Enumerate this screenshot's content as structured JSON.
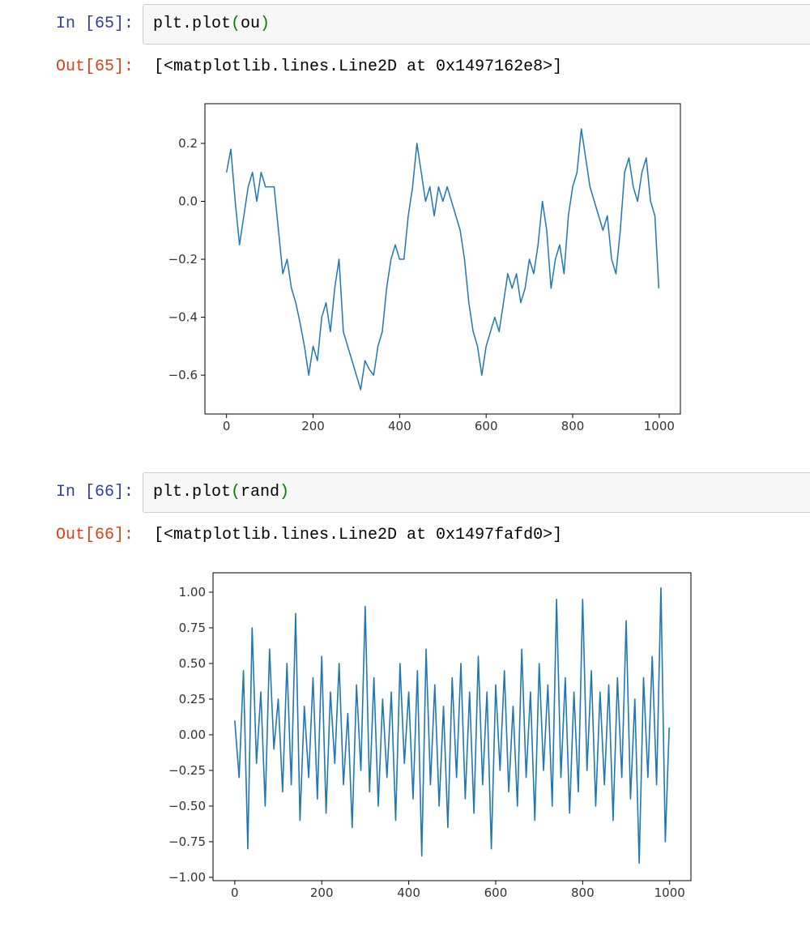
{
  "cells": [
    {
      "prompt_in": "In [65]:",
      "code": [
        "plt.plot",
        "(",
        "ou",
        ")"
      ],
      "prompt_out": "Out[65]:",
      "output": "[<matplotlib.lines.Line2D at 0x1497162e8>]"
    },
    {
      "prompt_in": "In [66]:",
      "code": [
        "plt.plot",
        "(",
        "rand",
        ")"
      ],
      "prompt_out": "Out[66]:",
      "output": "[<matplotlib.lines.Line2D at 0x1497fafd0>]"
    }
  ],
  "chart_data": [
    {
      "type": "line",
      "x": [
        0,
        10,
        20,
        30,
        40,
        50,
        60,
        70,
        80,
        90,
        100,
        110,
        120,
        130,
        140,
        150,
        160,
        170,
        180,
        190,
        200,
        210,
        220,
        230,
        240,
        250,
        260,
        270,
        280,
        290,
        300,
        310,
        320,
        330,
        340,
        350,
        360,
        370,
        380,
        390,
        400,
        410,
        420,
        430,
        440,
        450,
        460,
        470,
        480,
        490,
        500,
        510,
        520,
        530,
        540,
        550,
        560,
        570,
        580,
        590,
        600,
        610,
        620,
        630,
        640,
        650,
        660,
        670,
        680,
        690,
        700,
        710,
        720,
        730,
        740,
        750,
        760,
        770,
        780,
        790,
        800,
        810,
        820,
        830,
        840,
        850,
        860,
        870,
        880,
        890,
        900,
        910,
        920,
        930,
        940,
        950,
        960,
        970,
        980,
        990,
        999
      ],
      "series": [
        {
          "color": "#1f77b4",
          "values": [
            0.1,
            0.18,
            0.0,
            -0.15,
            -0.05,
            0.05,
            0.1,
            0.0,
            0.1,
            0.05,
            0.05,
            0.05,
            -0.1,
            -0.25,
            -0.2,
            -0.3,
            -0.35,
            -0.42,
            -0.5,
            -0.6,
            -0.5,
            -0.55,
            -0.4,
            -0.35,
            -0.45,
            -0.3,
            -0.2,
            -0.45,
            -0.5,
            -0.55,
            -0.6,
            -0.65,
            -0.55,
            -0.58,
            -0.6,
            -0.5,
            -0.45,
            -0.3,
            -0.2,
            -0.15,
            -0.2,
            -0.2,
            -0.05,
            0.05,
            0.2,
            0.1,
            0.0,
            0.05,
            -0.05,
            0.05,
            0.0,
            0.05,
            0.0,
            -0.05,
            -0.1,
            -0.2,
            -0.35,
            -0.45,
            -0.5,
            -0.6,
            -0.5,
            -0.45,
            -0.4,
            -0.45,
            -0.35,
            -0.25,
            -0.3,
            -0.25,
            -0.35,
            -0.3,
            -0.2,
            -0.25,
            -0.15,
            0.0,
            -0.1,
            -0.3,
            -0.2,
            -0.15,
            -0.25,
            -0.05,
            0.05,
            0.1,
            0.25,
            0.15,
            0.05,
            0.0,
            -0.05,
            -0.1,
            -0.05,
            -0.2,
            -0.25,
            -0.1,
            0.1,
            0.15,
            0.05,
            0.0,
            0.1,
            0.15,
            0.0,
            -0.05,
            -0.3
          ]
        }
      ],
      "xlim": [
        -49.95,
        1048.95
      ],
      "ylim": [
        -0.734,
        0.337
      ],
      "xticks": [
        0,
        200,
        400,
        600,
        800,
        1000
      ],
      "yticks": [
        {
          "value": -0.6,
          "label": "−0.6"
        },
        {
          "value": -0.4,
          "label": "−0.4"
        },
        {
          "value": -0.2,
          "label": "−0.2"
        },
        {
          "value": 0,
          "label": "0.0"
        },
        0.2
      ]
    },
    {
      "type": "line",
      "x": [
        0,
        10,
        20,
        30,
        40,
        50,
        60,
        70,
        80,
        90,
        100,
        110,
        120,
        130,
        140,
        150,
        160,
        170,
        180,
        190,
        200,
        210,
        220,
        230,
        240,
        250,
        260,
        270,
        280,
        290,
        300,
        310,
        320,
        330,
        340,
        350,
        360,
        370,
        380,
        390,
        400,
        410,
        420,
        430,
        440,
        450,
        460,
        470,
        480,
        490,
        500,
        510,
        520,
        530,
        540,
        550,
        560,
        570,
        580,
        590,
        600,
        610,
        620,
        630,
        640,
        650,
        660,
        670,
        680,
        690,
        700,
        710,
        720,
        730,
        740,
        750,
        760,
        770,
        780,
        790,
        800,
        810,
        820,
        830,
        840,
        850,
        860,
        870,
        880,
        890,
        900,
        910,
        920,
        930,
        940,
        950,
        960,
        970,
        980,
        990,
        999
      ],
      "series": [
        {
          "color": "#1f77b4",
          "values": [
            0.1,
            -0.3,
            0.45,
            -0.8,
            0.75,
            -0.2,
            0.3,
            -0.5,
            0.6,
            -0.1,
            0.25,
            -0.4,
            0.5,
            -0.35,
            0.85,
            -0.6,
            0.2,
            -0.3,
            0.4,
            -0.45,
            0.55,
            -0.55,
            0.3,
            -0.2,
            0.5,
            -0.35,
            0.15,
            -0.65,
            0.35,
            -0.25,
            0.9,
            -0.4,
            0.4,
            -0.5,
            0.25,
            -0.3,
            0.3,
            -0.6,
            0.5,
            -0.2,
            0.3,
            -0.45,
            0.45,
            -0.85,
            0.6,
            -0.35,
            0.35,
            -0.5,
            0.2,
            -0.65,
            0.4,
            -0.3,
            0.5,
            -0.45,
            0.3,
            -0.55,
            0.55,
            -0.35,
            0.3,
            -0.8,
            0.35,
            -0.25,
            0.45,
            -0.4,
            0.2,
            -0.5,
            0.6,
            -0.3,
            0.3,
            -0.6,
            0.5,
            -0.25,
            0.35,
            -0.5,
            0.95,
            -0.3,
            0.4,
            -0.55,
            0.3,
            -0.4,
            0.95,
            -0.25,
            0.45,
            -0.5,
            0.3,
            -0.35,
            0.35,
            -0.6,
            0.4,
            -0.3,
            0.8,
            -0.45,
            0.25,
            -0.9,
            0.4,
            -0.3,
            0.55,
            -0.35,
            1.03,
            -0.75,
            0.05
          ]
        }
      ],
      "xlim": [
        -49.95,
        1048.95
      ],
      "ylim": [
        -1.023,
        1.136
      ],
      "xticks": [
        0,
        200,
        400,
        600,
        800,
        1000
      ],
      "yticks": [
        {
          "value": -1,
          "label": "−1.00"
        },
        {
          "value": -0.75,
          "label": "−0.75"
        },
        {
          "value": -0.5,
          "label": "−0.50"
        },
        {
          "value": -0.25,
          "label": "−0.25"
        },
        {
          "value": 0,
          "label": "0.00"
        },
        0.25,
        {
          "value": 0.5,
          "label": "0.50"
        },
        0.75,
        {
          "value": 1,
          "label": "1.00"
        }
      ]
    }
  ]
}
